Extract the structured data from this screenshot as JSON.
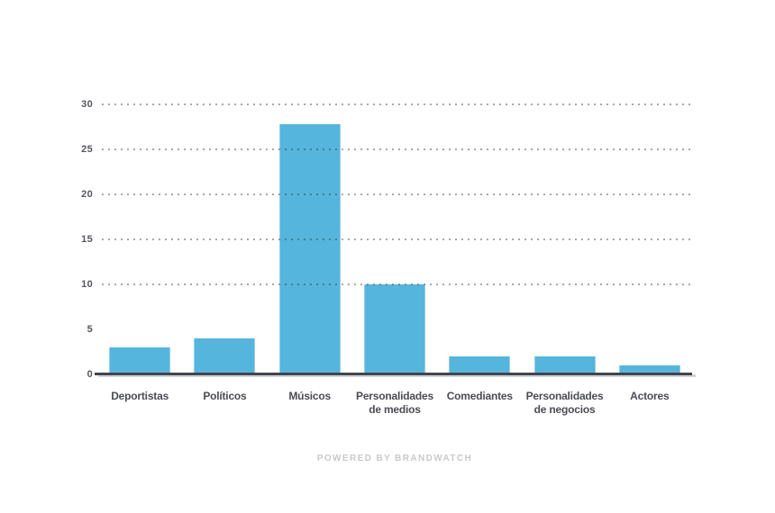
{
  "footer": {
    "powered_by": "POWERED BY BRANDWATCH"
  },
  "chart_data": {
    "type": "bar",
    "title": "",
    "xlabel": "",
    "ylabel": "",
    "categories": [
      "Deportistas",
      "Políticos",
      "Músicos",
      "Personalidades de medios",
      "Comediantes",
      "Personalidades de negocios",
      "Actores"
    ],
    "values": [
      3,
      4,
      27.8,
      10,
      2,
      2,
      1
    ],
    "ylim": [
      0,
      30
    ],
    "y_ticks": [
      0,
      5,
      10,
      15,
      20,
      25,
      30
    ],
    "gridline_ticks": [
      10,
      15,
      20,
      25,
      30
    ],
    "grid": "horizontal-dotted-over-bars",
    "legend": "none",
    "colors": {
      "bar": "#56b5dc",
      "axis": "#42444e",
      "gridline": "#9e9e9e",
      "x_labels": "#4b4c55",
      "y_ticks": "#56575f",
      "footer_text": "#c9c9c9"
    }
  }
}
